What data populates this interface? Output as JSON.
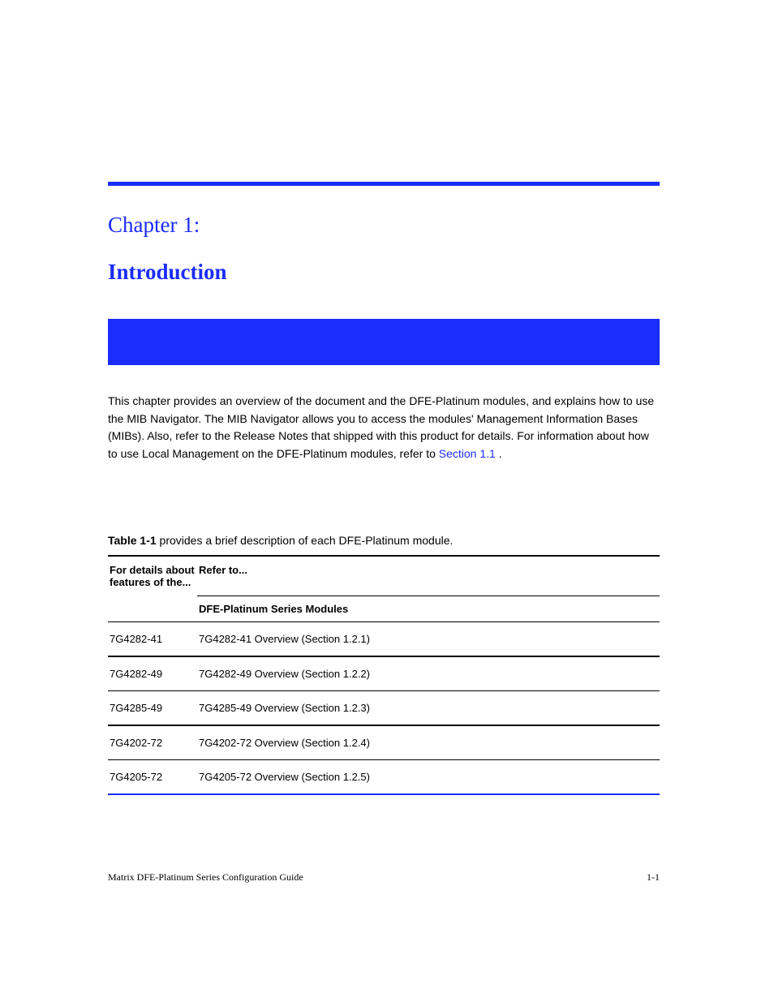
{
  "colors": {
    "accent": "#1a2cff",
    "text": "#000000",
    "background": "#ffffff"
  },
  "chapter": {
    "kicker": "Chapter 1:",
    "title": "Introduction"
  },
  "intro": {
    "p1_part1": "This chapter provides an overview of the document and the DFE-Platinum modules, and explains how to use the MIB Navigator. The MIB Navigator allows you to access the modules' Management Information Bases (MIBs). Also, refer to the Release Notes that shipped with this product for details. For information about how to use Local Management on the DFE-Platinum modules, refer to ",
    "p1_link_text": "Section 1.1",
    "p1_part2": "."
  },
  "table": {
    "caption_label": "Table 1-1",
    "caption_text": " provides a brief description of each DFE-Platinum module.",
    "header_left": "For details about features of the...",
    "header_right": "Refer to...",
    "subheader": "DFE-Platinum Series Modules",
    "rows": [
      {
        "left": "7G4282-41",
        "right": "7G4282-41 Overview (Section 1.2.1)"
      },
      {
        "left": "7G4282-49",
        "right": "7G4282-49 Overview (Section 1.2.2)"
      },
      {
        "left": "7G4285-49",
        "right": "7G4285-49 Overview (Section 1.2.3)"
      },
      {
        "left": "7G4202-72",
        "right": "7G4202-72 Overview (Section 1.2.4)"
      },
      {
        "left": "7G4205-72",
        "right": "7G4205-72 Overview (Section 1.2.5)"
      }
    ]
  },
  "footer": {
    "left": "Matrix DFE-Platinum Series Configuration Guide",
    "right": "1-1"
  }
}
